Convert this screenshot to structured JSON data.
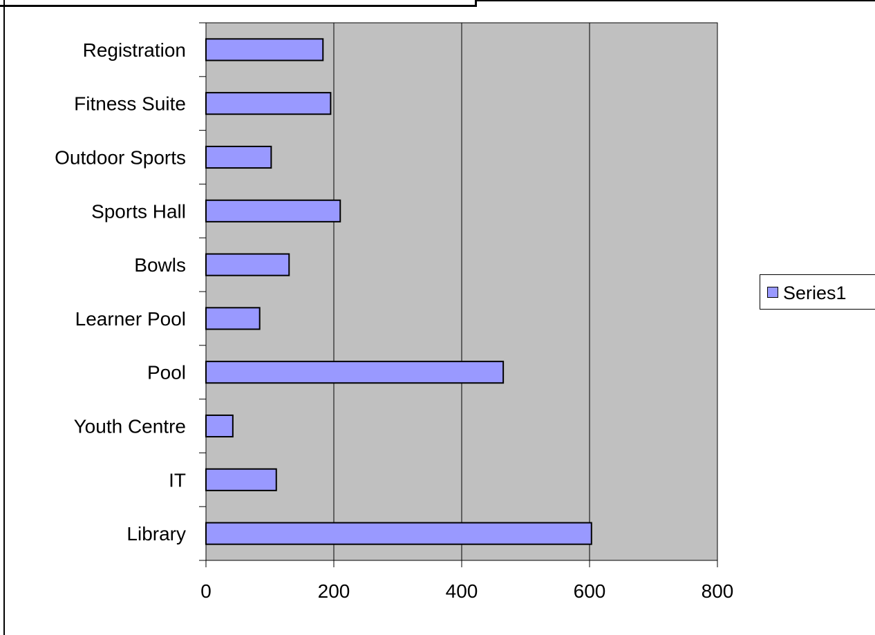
{
  "chart_data": {
    "type": "bar",
    "orientation": "horizontal",
    "categories": [
      "Library",
      "IT",
      "Youth Centre",
      "Pool",
      "Learner Pool",
      "Bowls",
      "Sports Hall",
      "Outdoor Sports",
      "Fitness Suite",
      "Registration"
    ],
    "series": [
      {
        "name": "Series1",
        "values": [
          603,
          110,
          42,
          465,
          84,
          130,
          210,
          102,
          195,
          183
        ]
      }
    ],
    "xlim": [
      0,
      800
    ],
    "xticks": [
      0,
      200,
      400,
      600,
      800
    ],
    "xtick_labels": [
      "0",
      "200",
      "400",
      "600",
      "800"
    ],
    "grid": "vertical major gridlines",
    "legend_position": "right",
    "colors": {
      "bar": "#9999ff",
      "plot_background": "#c0c0c0",
      "gridline": "#000000"
    }
  },
  "legend": {
    "label": "Series1"
  }
}
